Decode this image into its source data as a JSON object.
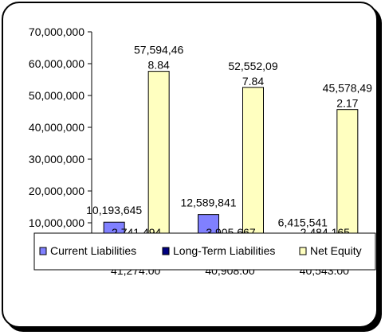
{
  "chart_data": {
    "type": "bar",
    "title": "",
    "xlabel": "",
    "ylabel": "",
    "categories": [
      "41,274.00",
      "40,908.00",
      "40,543.00"
    ],
    "ylim": [
      0,
      70000000
    ],
    "yticks": [
      10000000,
      20000000,
      30000000,
      40000000,
      50000000,
      60000000,
      70000000
    ],
    "ytick_labels": [
      "10,000,000",
      "20,000,000",
      "30,000,000",
      "40,000,000",
      "50,000,000",
      "60,000,000",
      "70,000,000"
    ],
    "grid": false,
    "legend_position": "bottom",
    "series": [
      {
        "name": "Current Liabilities",
        "color": "#8080ff",
        "values": [
          10193645,
          12589841,
          6415541
        ],
        "labels": [
          [
            "10,193,645"
          ],
          [
            "12,589,841"
          ],
          [
            "6,415,541"
          ]
        ]
      },
      {
        "name": "Long-Term Liabilities",
        "color": "#000080",
        "values": [
          2741494,
          3905667,
          2484165
        ],
        "labels": [
          [
            "2,741,494"
          ],
          [
            "3,905,667"
          ],
          [
            "2,484,165"
          ]
        ]
      },
      {
        "name": "Net Equity",
        "color": "#ffffc0",
        "values": [
          57594468.84,
          52552097.84,
          45578492.17
        ],
        "labels": [
          [
            "57,594,46",
            "8.84"
          ],
          [
            "52,552,09",
            "7.84"
          ],
          [
            "45,578,49",
            "2.17"
          ]
        ]
      }
    ]
  }
}
